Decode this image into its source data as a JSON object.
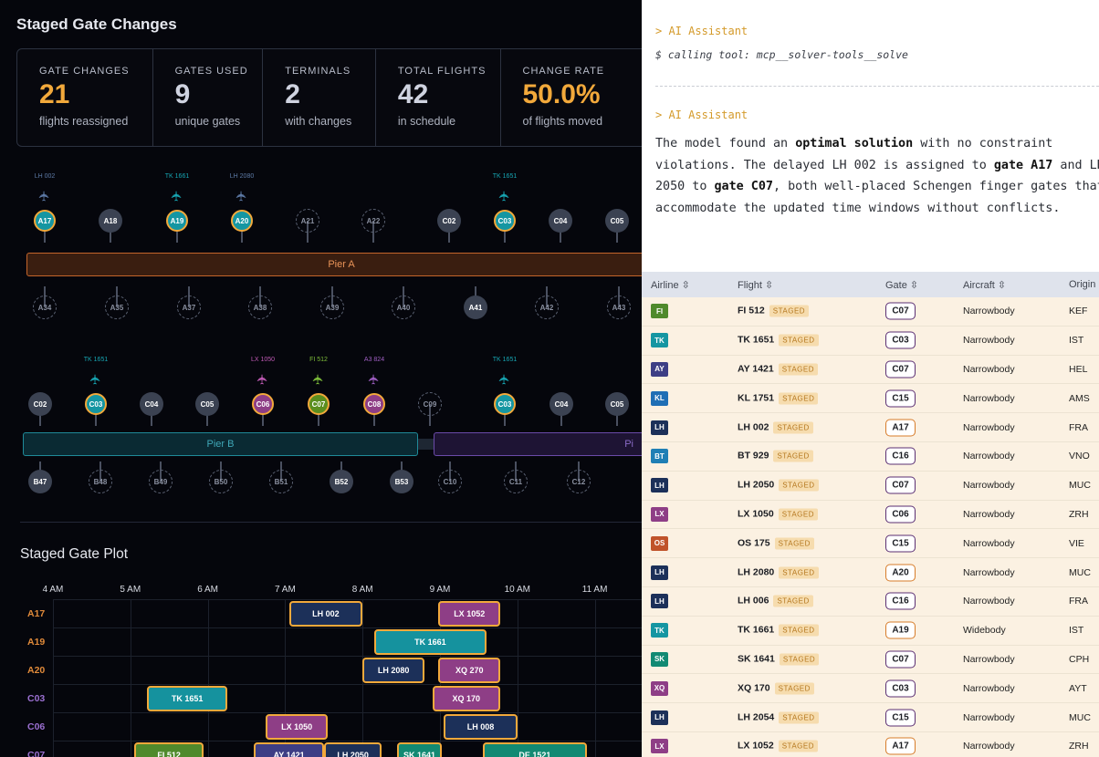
{
  "left": {
    "title": "Staged Gate Changes",
    "stats": [
      {
        "label": "GATE CHANGES",
        "value": "21",
        "sub": "flights reassigned",
        "color": "#f2a93b"
      },
      {
        "label": "GATES USED",
        "value": "9",
        "sub": "unique gates",
        "color": "#cfd3e0"
      },
      {
        "label": "TERMINALS",
        "value": "2",
        "sub": "with changes",
        "color": "#cfd3e0"
      },
      {
        "label": "TOTAL FLIGHTS",
        "value": "42",
        "sub": "in schedule",
        "color": "#cfd3e0"
      },
      {
        "label": "CHANGE RATE",
        "value": "50.0%",
        "sub": "of flights moved",
        "color": "#f2a93b"
      }
    ],
    "pierA": {
      "label": "Pier A",
      "top_gates": [
        {
          "id": "A17",
          "state": "staged",
          "flight": "LH 002",
          "flight_color": "#5d7aa6"
        },
        {
          "id": "A18",
          "state": "used"
        },
        {
          "id": "A19",
          "state": "staged",
          "flight": "TK 1661",
          "flight_color": "#17a6b3"
        },
        {
          "id": "A20",
          "state": "staged",
          "flight": "LH 2080",
          "flight_color": "#5d7aa6"
        },
        {
          "id": "A21",
          "state": "empty"
        },
        {
          "id": "A22",
          "state": "empty"
        },
        {
          "id": "C02",
          "state": "used"
        },
        {
          "id": "C03",
          "state": "staged",
          "flight": "TK 1651",
          "flight_color": "#17a6b3"
        },
        {
          "id": "C04",
          "state": "used"
        },
        {
          "id": "C05",
          "state": "used"
        }
      ],
      "bottom_gates": [
        {
          "id": "A34",
          "state": "empty"
        },
        {
          "id": "A35",
          "state": "empty"
        },
        {
          "id": "A37",
          "state": "empty"
        },
        {
          "id": "A38",
          "state": "empty"
        },
        {
          "id": "A39",
          "state": "empty"
        },
        {
          "id": "A40",
          "state": "empty"
        },
        {
          "id": "A41",
          "state": "used"
        },
        {
          "id": "A42",
          "state": "empty"
        },
        {
          "id": "A43",
          "state": "empty"
        }
      ]
    },
    "pierB": {
      "label": "Pier B",
      "label_c": "Pi",
      "top_gates": [
        {
          "id": "C02",
          "state": "used"
        },
        {
          "id": "C03",
          "state": "staged",
          "flight": "TK 1651",
          "flight_color": "#17a6b3"
        },
        {
          "id": "C04",
          "state": "used"
        },
        {
          "id": "C05",
          "state": "used"
        },
        {
          "id": "C06",
          "state": "staged-pk",
          "flight": "LX 1050",
          "flight_color": "#c05ab5"
        },
        {
          "id": "C07",
          "state": "staged-gr",
          "flight": "FI 512",
          "flight_color": "#7fbf3a"
        },
        {
          "id": "C08",
          "state": "staged-pk",
          "flight": "A3 824",
          "flight_color": "#a05fc4"
        },
        {
          "id": "C09",
          "state": "empty"
        },
        {
          "id": "C03",
          "state": "staged",
          "flight": "TK 1651",
          "flight_color": "#17a6b3"
        },
        {
          "id": "C04",
          "state": "used"
        },
        {
          "id": "C05",
          "state": "used"
        }
      ],
      "bottom_gates": [
        {
          "id": "B47",
          "state": "used"
        },
        {
          "id": "B48",
          "state": "empty"
        },
        {
          "id": "B49",
          "state": "empty"
        },
        {
          "id": "B50",
          "state": "empty"
        },
        {
          "id": "B51",
          "state": "empty"
        },
        {
          "id": "B52",
          "state": "used"
        },
        {
          "id": "B53",
          "state": "used"
        },
        {
          "id": "C10",
          "state": "empty"
        },
        {
          "id": "C11",
          "state": "empty"
        },
        {
          "id": "C12",
          "state": "empty"
        }
      ]
    },
    "plot": {
      "title": "Staged Gate Plot",
      "ticks": [
        "4 AM",
        "5 AM",
        "6 AM",
        "7 AM",
        "8 AM",
        "9 AM",
        "10 AM",
        "11 AM"
      ],
      "rows": [
        {
          "gate": "A17",
          "color": "#e08a3a"
        },
        {
          "gate": "A19",
          "color": "#e08a3a"
        },
        {
          "gate": "A20",
          "color": "#e08a3a"
        },
        {
          "gate": "C03",
          "color": "#9a6fd0"
        },
        {
          "gate": "C06",
          "color": "#9a6fd0"
        },
        {
          "gate": "C07",
          "color": "#9a6fd0"
        }
      ],
      "bars": [
        {
          "row": 0,
          "label": "LH 002",
          "start": 7.05,
          "end": 8.0,
          "color": "#1c3059"
        },
        {
          "row": 0,
          "label": "LX 1052",
          "start": 8.98,
          "end": 9.78,
          "color": "#8e3e86"
        },
        {
          "row": 1,
          "label": "TK 1661",
          "start": 8.15,
          "end": 9.6,
          "color": "#15929e"
        },
        {
          "row": 2,
          "label": "LH 2080",
          "start": 8.0,
          "end": 8.8,
          "color": "#1c3059"
        },
        {
          "row": 2,
          "label": "XQ 270",
          "start": 8.98,
          "end": 9.78,
          "color": "#8e3e86"
        },
        {
          "row": 3,
          "label": "TK 1651",
          "start": 5.22,
          "end": 6.25,
          "color": "#15929e"
        },
        {
          "row": 3,
          "label": "XQ 170",
          "start": 8.9,
          "end": 9.78,
          "color": "#8e3e86"
        },
        {
          "row": 4,
          "label": "LX 1050",
          "start": 6.75,
          "end": 7.55,
          "color": "#8e3e86"
        },
        {
          "row": 4,
          "label": "LH 008",
          "start": 9.05,
          "end": 10.0,
          "color": "#1c3059"
        },
        {
          "row": 5,
          "label": "FI 512",
          "start": 5.05,
          "end": 5.95,
          "color": "#4f8a2c"
        },
        {
          "row": 5,
          "label": "AY 1421",
          "start": 6.6,
          "end": 7.5,
          "color": "#3d3e85"
        },
        {
          "row": 5,
          "label": "LH 2050",
          "start": 7.5,
          "end": 8.25,
          "color": "#1c3059"
        },
        {
          "row": 5,
          "label": "SK 1641",
          "start": 8.45,
          "end": 9.02,
          "color": "#128a73"
        },
        {
          "row": 5,
          "label": "DE 1521",
          "start": 9.55,
          "end": 10.9,
          "color": "#128a73"
        }
      ]
    }
  },
  "right": {
    "ai1": "> AI Assistant",
    "tool": "$ calling tool: mcp__solver-tools__solve",
    "ai2": "> AI Assistant",
    "msg_parts": [
      "The model found an ",
      "optimal solution",
      " with no constraint violations. The delayed LH 002 is assigned to ",
      "gate A17",
      " and LH 2050 to ",
      "gate C07",
      ", both well-placed Schengen finger gates that accommodate the updated time windows without conflicts."
    ],
    "columns": [
      "Airline",
      "Flight",
      "Gate",
      "Aircraft",
      "Origin"
    ],
    "staged_tag": "STAGED",
    "rows": [
      {
        "airline": "FI",
        "color": "#4f8a2c",
        "flight": "FI 512",
        "gate": "C07",
        "aircraft": "Narrowbody",
        "origin": "KEF",
        "pill": "purple"
      },
      {
        "airline": "TK",
        "color": "#1596a2",
        "flight": "TK 1651",
        "gate": "C03",
        "aircraft": "Narrowbody",
        "origin": "IST",
        "pill": "purple"
      },
      {
        "airline": "AY",
        "color": "#3d3e85",
        "flight": "AY 1421",
        "gate": "C07",
        "aircraft": "Narrowbody",
        "origin": "HEL",
        "pill": "purple"
      },
      {
        "airline": "KL",
        "color": "#1f6fb5",
        "flight": "KL 1751",
        "gate": "C15",
        "aircraft": "Narrowbody",
        "origin": "AMS",
        "pill": "purple"
      },
      {
        "airline": "LH",
        "color": "#1c3059",
        "flight": "LH 002",
        "gate": "A17",
        "aircraft": "Narrowbody",
        "origin": "FRA",
        "pill": "orange"
      },
      {
        "airline": "BT",
        "color": "#1f7fb5",
        "flight": "BT 929",
        "gate": "C16",
        "aircraft": "Narrowbody",
        "origin": "VNO",
        "pill": "purple"
      },
      {
        "airline": "LH",
        "color": "#1c3059",
        "flight": "LH 2050",
        "gate": "C07",
        "aircraft": "Narrowbody",
        "origin": "MUC",
        "pill": "purple"
      },
      {
        "airline": "LX",
        "color": "#8e3e86",
        "flight": "LX 1050",
        "gate": "C06",
        "aircraft": "Narrowbody",
        "origin": "ZRH",
        "pill": "purple"
      },
      {
        "airline": "OS",
        "color": "#c0532a",
        "flight": "OS 175",
        "gate": "C15",
        "aircraft": "Narrowbody",
        "origin": "VIE",
        "pill": "purple"
      },
      {
        "airline": "LH",
        "color": "#1c3059",
        "flight": "LH 2080",
        "gate": "A20",
        "aircraft": "Narrowbody",
        "origin": "MUC",
        "pill": "orange"
      },
      {
        "airline": "LH",
        "color": "#1c3059",
        "flight": "LH 006",
        "gate": "C16",
        "aircraft": "Narrowbody",
        "origin": "FRA",
        "pill": "purple"
      },
      {
        "airline": "TK",
        "color": "#1596a2",
        "flight": "TK 1661",
        "gate": "A19",
        "aircraft": "Widebody",
        "origin": "IST",
        "pill": "orange"
      },
      {
        "airline": "SK",
        "color": "#128a73",
        "flight": "SK 1641",
        "gate": "C07",
        "aircraft": "Narrowbody",
        "origin": "CPH",
        "pill": "purple"
      },
      {
        "airline": "XQ",
        "color": "#8e3e86",
        "flight": "XQ 170",
        "gate": "C03",
        "aircraft": "Narrowbody",
        "origin": "AYT",
        "pill": "purple"
      },
      {
        "airline": "LH",
        "color": "#1c3059",
        "flight": "LH 2054",
        "gate": "C15",
        "aircraft": "Narrowbody",
        "origin": "MUC",
        "pill": "purple"
      },
      {
        "airline": "LX",
        "color": "#8e3e86",
        "flight": "LX 1052",
        "gate": "A17",
        "aircraft": "Narrowbody",
        "origin": "ZRH",
        "pill": "orange"
      }
    ]
  }
}
